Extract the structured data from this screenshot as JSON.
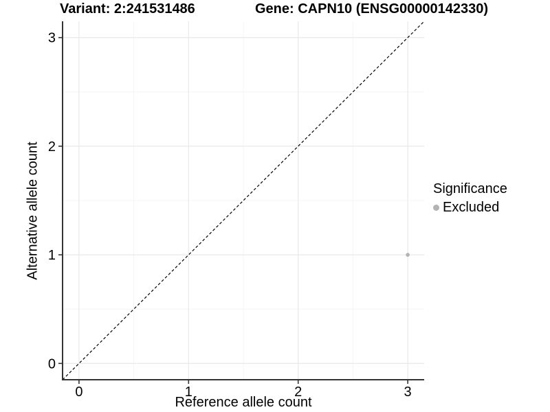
{
  "titles": {
    "variant": "Variant: 2:241531486",
    "gene": "Gene: CAPN10 (ENSG00000142330)"
  },
  "chart_data": {
    "type": "scatter",
    "xlabel": "Reference allele count",
    "ylabel": "Alternative allele count",
    "xlim": [
      -0.15,
      3.15
    ],
    "ylim": [
      -0.15,
      3.15
    ],
    "xticks": [
      0,
      1,
      2,
      3
    ],
    "yticks": [
      0,
      1,
      2,
      3
    ],
    "minor_xticks": [
      0.5,
      1.5,
      2.5
    ],
    "minor_yticks": [
      0.5,
      1.5,
      2.5
    ],
    "grid": true,
    "series": [
      {
        "name": "Excluded",
        "color": "#b3b3b3",
        "points": [
          {
            "x": 3,
            "y": 1
          }
        ]
      }
    ],
    "reference_line": {
      "style": "dashed",
      "color": "#000000",
      "from": [
        -0.15,
        -0.15
      ],
      "to": [
        3.15,
        3.15
      ]
    },
    "legend": {
      "title": "Significance",
      "position": "right",
      "entries": [
        {
          "label": "Excluded",
          "color": "#b3b3b3"
        }
      ]
    }
  },
  "colors": {
    "background": "#ffffff",
    "grid_major": "#e8e8e8",
    "grid_minor": "#f4f4f4",
    "axis_line": "#333333",
    "tick_label": "#000000",
    "point": "#b3b3b3"
  }
}
